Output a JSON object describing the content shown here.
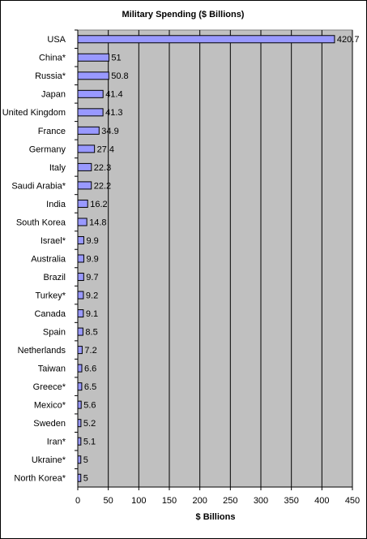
{
  "chart_data": {
    "type": "bar",
    "orientation": "horizontal",
    "title": "Military Spending ($ Billions)",
    "x_label": "$ Billions",
    "categories": [
      "USA",
      "China*",
      "Russia*",
      "Japan",
      "United Kingdom",
      "France",
      "Germany",
      "Italy",
      "Saudi Arabia*",
      "India",
      "South Korea",
      "Israel*",
      "Australia",
      "Brazil",
      "Turkey*",
      "Canada",
      "Spain",
      "Netherlands",
      "Taiwan",
      "Greece*",
      "Mexico*",
      "Sweden",
      "Iran*",
      "Ukraine*",
      "North Korea*"
    ],
    "values": [
      420.7,
      51,
      50.8,
      41.4,
      41.3,
      34.9,
      27.4,
      22.3,
      22.2,
      16.2,
      14.8,
      9.9,
      9.9,
      9.7,
      9.2,
      9.1,
      8.5,
      7.2,
      6.6,
      6.5,
      5.6,
      5.2,
      5.1,
      5,
      5
    ],
    "color": "#9999ff",
    "xlim": [
      0,
      450
    ],
    "xticks": [
      0,
      50,
      100,
      150,
      200,
      250,
      300,
      350,
      400,
      450
    ],
    "grid": true,
    "plot_background": "#c0c0c0"
  }
}
